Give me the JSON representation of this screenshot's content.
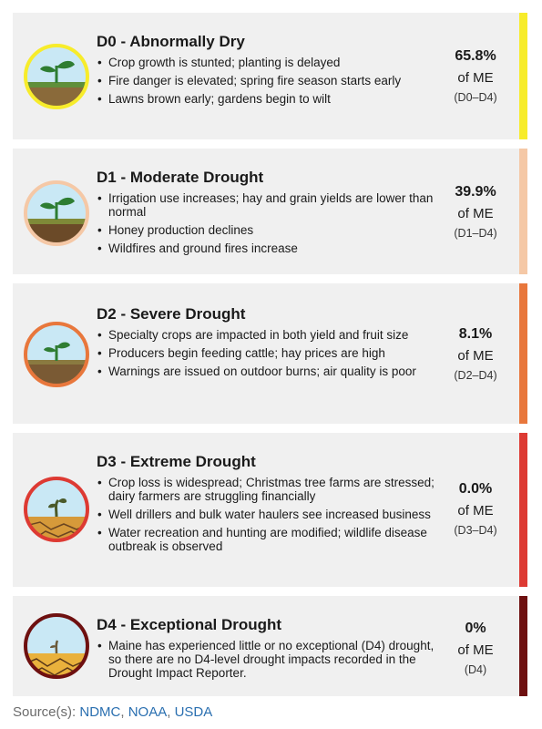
{
  "cards": [
    {
      "title": "D0 - Abnormally Dry",
      "bullets": [
        "Crop growth is stunted; planting is delayed",
        "Fire danger is elevated; spring fire season starts early",
        "Lawns brown early; gardens begin to wilt"
      ],
      "stat_value": "65.8%",
      "stat_of": "of ME",
      "stat_range": "(D0–D4)",
      "color": "#f7ec2b",
      "icon": "sprout-healthy-icon"
    },
    {
      "title": "D1 - Moderate Drought",
      "bullets": [
        "Irrigation use increases; hay and grain yields are lower than normal",
        "Honey production declines",
        "Wildfires and ground fires increase"
      ],
      "stat_value": "39.9%",
      "stat_of": "of ME",
      "stat_range": "(D1–D4)",
      "color": "#f5c8a6",
      "icon": "sprout-moderate-icon"
    },
    {
      "title": "D2 - Severe Drought",
      "bullets": [
        "Specialty crops are impacted in both yield and fruit size",
        "Producers begin feeding cattle; hay prices are high",
        "Warnings are issued on outdoor burns; air quality is poor"
      ],
      "stat_value": "8.1%",
      "stat_of": "of ME",
      "stat_range": "(D2–D4)",
      "color": "#e8773c",
      "icon": "sprout-severe-icon"
    },
    {
      "title": "D3 - Extreme Drought",
      "bullets": [
        "Crop loss is widespread; Christmas tree farms are stressed; dairy farmers are struggling financially",
        "Well drillers and bulk water haulers see increased business",
        "Water recreation and hunting are modified; wildlife disease outbreak is observed"
      ],
      "stat_value": "0.0%",
      "stat_of": "of ME",
      "stat_range": "(D3–D4)",
      "color": "#dd3a33",
      "icon": "sprout-wilting-icon"
    },
    {
      "title": "D4 - Exceptional Drought",
      "bullets": [
        "Maine has experienced little or no exceptional (D4) drought, so there are no D4-level drought impacts recorded in the Drought Impact Reporter."
      ],
      "stat_value": "0%",
      "stat_of": "of ME",
      "stat_range": "(D4)",
      "color": "#6e1010",
      "icon": "sprout-dead-icon"
    }
  ],
  "source": {
    "label": "Source(s):",
    "links": [
      "NDMC",
      "NOAA",
      "USDA"
    ],
    "separator": ", "
  }
}
